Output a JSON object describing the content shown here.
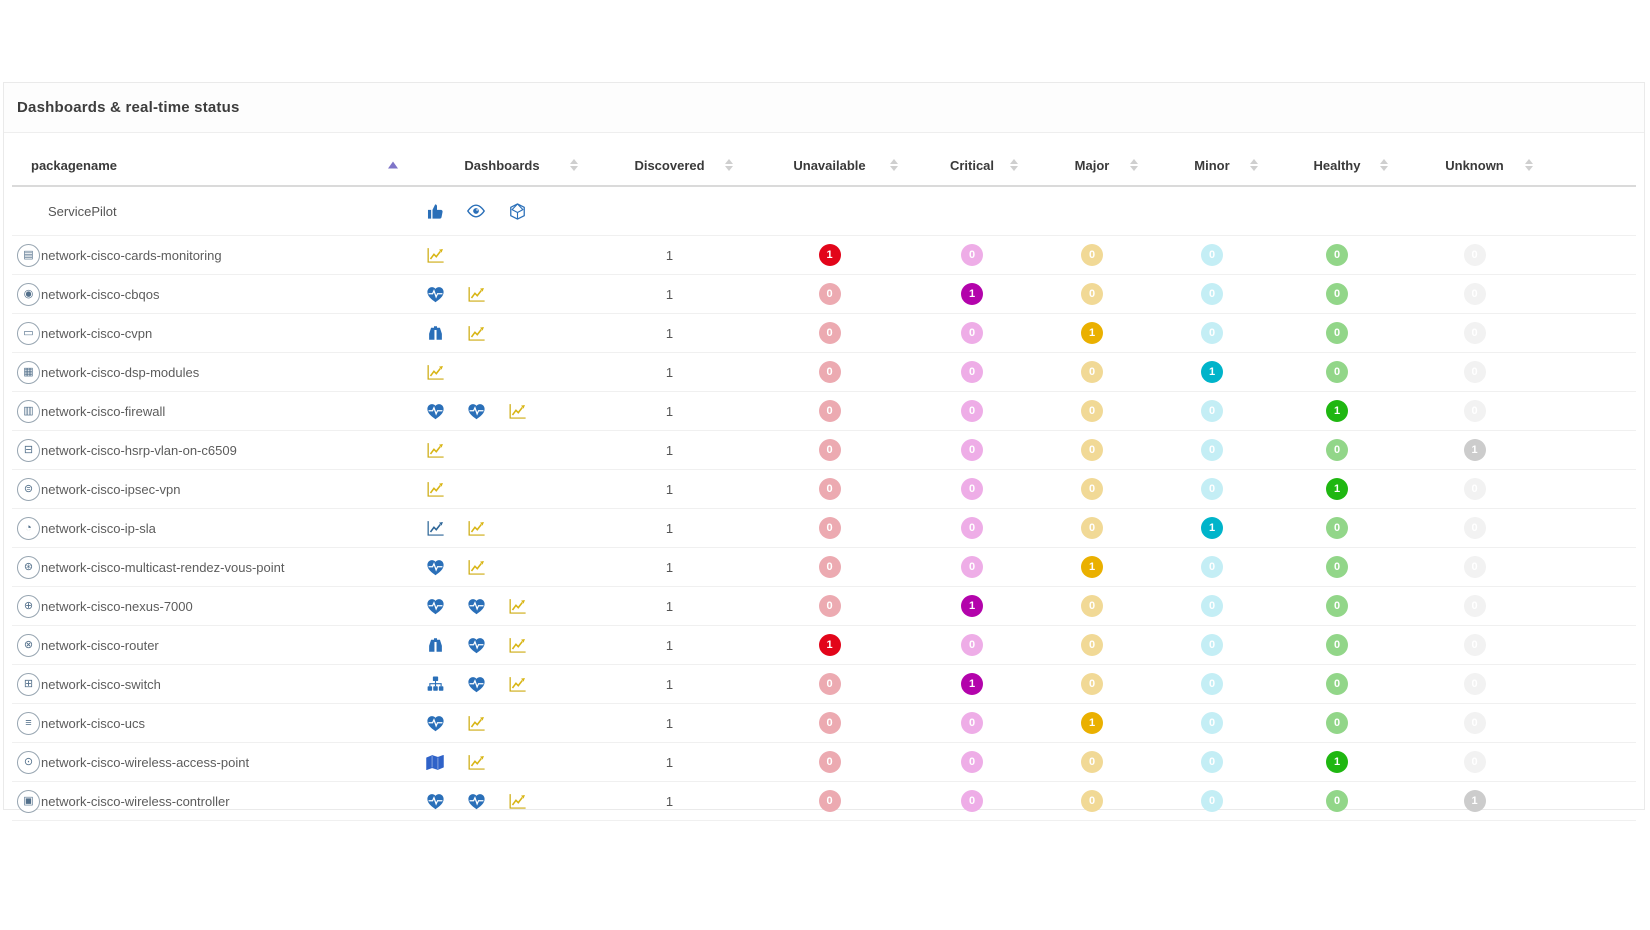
{
  "page": {
    "title": "Dashboards & real-time status"
  },
  "colors": {
    "sort_inactive": "#cfcfcf",
    "sort_active": "#7e74c8",
    "icon_blue": "#2a6fb8",
    "icon_chart_yellow": "#d8b515",
    "icon_chart_blue": "#2c6597",
    "icon_map_blue": "#2f62c8"
  },
  "status_colors": {
    "unavailable": {
      "active": "#e2051a",
      "zero": "#ecaab1"
    },
    "critical": {
      "active": "#b303ab",
      "zero": "#eeade7"
    },
    "major": {
      "active": "#eab000",
      "zero": "#f1d996"
    },
    "minor": {
      "active": "#00b4ca",
      "zero": "#c4eef5"
    },
    "healthy": {
      "active": "#1fb711",
      "zero": "#92d689"
    },
    "unknown": {
      "active": "#cccccc",
      "zero": "#f2f2f2"
    }
  },
  "table": {
    "columns": [
      {
        "key": "packagename",
        "label": "packagename",
        "sort": "asc"
      },
      {
        "key": "dashboards",
        "label": "Dashboards",
        "sort": "none"
      },
      {
        "key": "discovered",
        "label": "Discovered",
        "sort": "none"
      },
      {
        "key": "unavailable",
        "label": "Unavailable",
        "sort": "none"
      },
      {
        "key": "critical",
        "label": "Critical",
        "sort": "none"
      },
      {
        "key": "major",
        "label": "Major",
        "sort": "none"
      },
      {
        "key": "minor",
        "label": "Minor",
        "sort": "none"
      },
      {
        "key": "healthy",
        "label": "Healthy",
        "sort": "none"
      },
      {
        "key": "unknown",
        "label": "Unknown",
        "sort": "none"
      }
    ],
    "group_row": {
      "label": "ServicePilot",
      "icons": [
        "thumbs-up",
        "eye",
        "cube"
      ]
    },
    "rows": [
      {
        "name": "network-cisco-cards-monitoring",
        "package_icon": {
          "name": "cisco-cards-package",
          "glyph": "▤"
        },
        "dashboards": [
          "chart-yellow"
        ],
        "discovered": "1",
        "unavailable": 1,
        "critical": 0,
        "major": 0,
        "minor": 0,
        "healthy": 0,
        "unknown": 0
      },
      {
        "name": "network-cisco-cbqos",
        "package_icon": {
          "name": "cisco-cbqos-package",
          "glyph": "◉"
        },
        "dashboards": [
          "heartbeat",
          "chart-yellow"
        ],
        "discovered": "1",
        "unavailable": 0,
        "critical": 1,
        "major": 0,
        "minor": 0,
        "healthy": 0,
        "unknown": 0
      },
      {
        "name": "network-cisco-cvpn",
        "package_icon": {
          "name": "cisco-cvpn-package",
          "glyph": "▭"
        },
        "dashboards": [
          "binoculars",
          "chart-yellow"
        ],
        "discovered": "1",
        "unavailable": 0,
        "critical": 0,
        "major": 1,
        "minor": 0,
        "healthy": 0,
        "unknown": 0
      },
      {
        "name": "network-cisco-dsp-modules",
        "package_icon": {
          "name": "cisco-dsp-package",
          "glyph": "▦"
        },
        "dashboards": [
          "chart-yellow"
        ],
        "discovered": "1",
        "unavailable": 0,
        "critical": 0,
        "major": 0,
        "minor": 1,
        "healthy": 0,
        "unknown": 0
      },
      {
        "name": "network-cisco-firewall",
        "package_icon": {
          "name": "cisco-firewall-package",
          "glyph": "▥"
        },
        "dashboards": [
          "heartbeat",
          "heartbeat",
          "chart-yellow"
        ],
        "discovered": "1",
        "unavailable": 0,
        "critical": 0,
        "major": 0,
        "minor": 0,
        "healthy": 1,
        "unknown": 0
      },
      {
        "name": "network-cisco-hsrp-vlan-on-c6509",
        "package_icon": {
          "name": "cisco-hsrp-package",
          "glyph": "⊟"
        },
        "dashboards": [
          "chart-yellow"
        ],
        "discovered": "1",
        "unavailable": 0,
        "critical": 0,
        "major": 0,
        "minor": 0,
        "healthy": 0,
        "unknown": 1
      },
      {
        "name": "network-cisco-ipsec-vpn",
        "package_icon": {
          "name": "cisco-ipsec-package",
          "glyph": "⊜"
        },
        "dashboards": [
          "chart-yellow"
        ],
        "discovered": "1",
        "unavailable": 0,
        "critical": 0,
        "major": 0,
        "minor": 0,
        "healthy": 1,
        "unknown": 0
      },
      {
        "name": "network-cisco-ip-sla",
        "package_icon": {
          "name": "cisco-ipsla-package",
          "glyph": "◔"
        },
        "dashboards": [
          "chart-blue",
          "chart-yellow"
        ],
        "discovered": "1",
        "unavailable": 0,
        "critical": 0,
        "major": 0,
        "minor": 1,
        "healthy": 0,
        "unknown": 0
      },
      {
        "name": "network-cisco-multicast-rendez-vous-point",
        "package_icon": {
          "name": "cisco-multicast-package",
          "glyph": "⊛"
        },
        "dashboards": [
          "heartbeat",
          "chart-yellow"
        ],
        "discovered": "1",
        "unavailable": 0,
        "critical": 0,
        "major": 1,
        "minor": 0,
        "healthy": 0,
        "unknown": 0
      },
      {
        "name": "network-cisco-nexus-7000",
        "package_icon": {
          "name": "cisco-nexus-package",
          "glyph": "⊕"
        },
        "dashboards": [
          "heartbeat",
          "heartbeat",
          "chart-yellow"
        ],
        "discovered": "1",
        "unavailable": 0,
        "critical": 1,
        "major": 0,
        "minor": 0,
        "healthy": 0,
        "unknown": 0
      },
      {
        "name": "network-cisco-router",
        "package_icon": {
          "name": "cisco-router-package",
          "glyph": "⊗"
        },
        "dashboards": [
          "binoculars",
          "heartbeat",
          "chart-yellow"
        ],
        "discovered": "1",
        "unavailable": 1,
        "critical": 0,
        "major": 0,
        "minor": 0,
        "healthy": 0,
        "unknown": 0
      },
      {
        "name": "network-cisco-switch",
        "package_icon": {
          "name": "cisco-switch-package",
          "glyph": "⊞"
        },
        "dashboards": [
          "sitemap",
          "heartbeat",
          "chart-yellow"
        ],
        "discovered": "1",
        "unavailable": 0,
        "critical": 1,
        "major": 0,
        "minor": 0,
        "healthy": 0,
        "unknown": 0
      },
      {
        "name": "network-cisco-ucs",
        "package_icon": {
          "name": "cisco-ucs-package",
          "glyph": "≡"
        },
        "dashboards": [
          "heartbeat",
          "chart-yellow"
        ],
        "discovered": "1",
        "unavailable": 0,
        "critical": 0,
        "major": 1,
        "minor": 0,
        "healthy": 0,
        "unknown": 0
      },
      {
        "name": "network-cisco-wireless-access-point",
        "package_icon": {
          "name": "cisco-wap-package",
          "glyph": "⊙"
        },
        "dashboards": [
          "map",
          "chart-yellow"
        ],
        "discovered": "1",
        "unavailable": 0,
        "critical": 0,
        "major": 0,
        "minor": 0,
        "healthy": 1,
        "unknown": 0
      },
      {
        "name": "network-cisco-wireless-controller",
        "package_icon": {
          "name": "cisco-wlc-package",
          "glyph": "▣"
        },
        "dashboards": [
          "heartbeat",
          "heartbeat",
          "chart-yellow"
        ],
        "discovered": "1",
        "unavailable": 0,
        "critical": 0,
        "major": 0,
        "minor": 0,
        "healthy": 0,
        "unknown": 1
      }
    ]
  }
}
